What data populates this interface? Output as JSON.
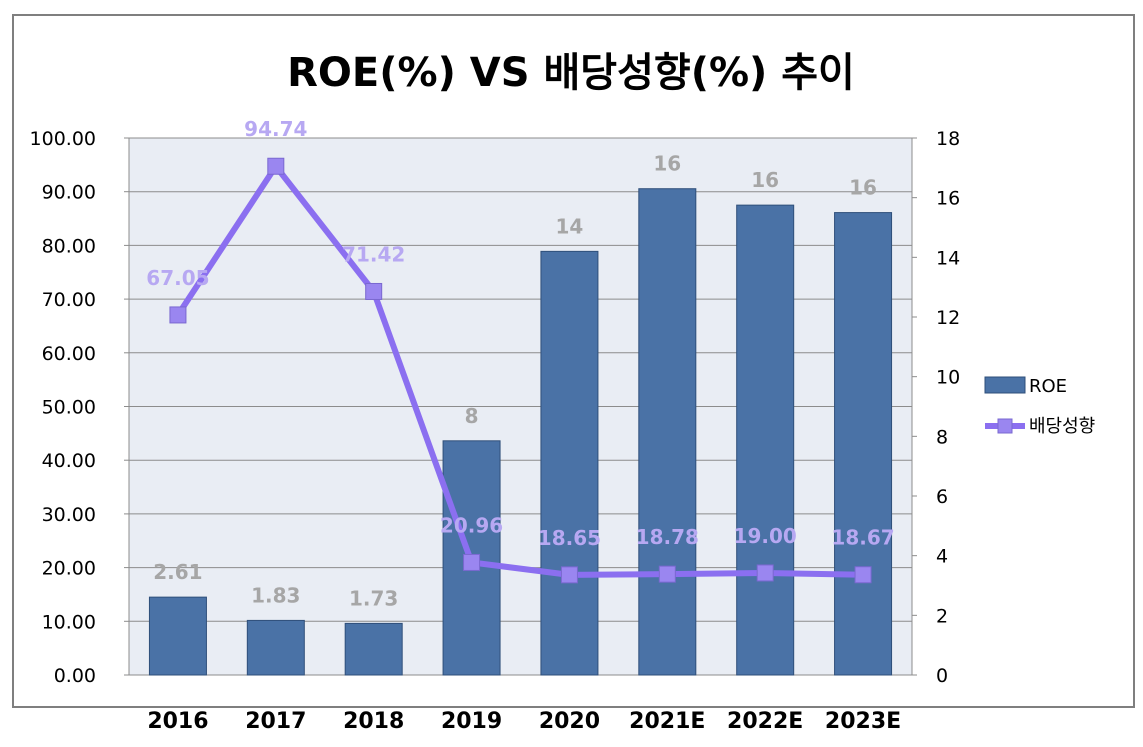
{
  "chart_data": {
    "type": "bar+line",
    "title": "ROE(%) VS 배당성향(%) 추이",
    "categories": [
      "2016",
      "2017",
      "2018",
      "2019",
      "2020",
      "2021E",
      "2022E",
      "2023E"
    ],
    "series": [
      {
        "name": "ROE",
        "type": "bar",
        "axis": "right",
        "values": [
          2.61,
          1.83,
          1.73,
          7.85,
          14.2,
          16.3,
          15.75,
          15.5
        ],
        "labels": [
          "2.61",
          "1.83",
          "1.73",
          "8",
          "14",
          "16",
          "16",
          "16"
        ]
      },
      {
        "name": "배당성향",
        "type": "line",
        "axis": "left",
        "values": [
          67.05,
          94.74,
          71.42,
          20.96,
          18.65,
          18.78,
          19.0,
          18.67
        ],
        "labels": [
          "67.05",
          "94.74",
          "71.42",
          "20.96",
          "18.65",
          "18.78",
          "19.00",
          "18.67"
        ]
      }
    ],
    "y_left": {
      "min": 0,
      "max": 100,
      "step": 10,
      "ticks": [
        "0.00",
        "10.00",
        "20.00",
        "30.00",
        "40.00",
        "50.00",
        "60.00",
        "70.00",
        "80.00",
        "90.00",
        "100.00"
      ]
    },
    "y_right": {
      "min": 0,
      "max": 18,
      "step": 2,
      "ticks": [
        "0",
        "2",
        "4",
        "6",
        "8",
        "10",
        "12",
        "14",
        "16",
        "18"
      ]
    },
    "grid": true,
    "legend_position": "right",
    "colors": {
      "bar": "#4a72a6",
      "bar_edge": "#2f4f7a",
      "line": "#8b6ff0",
      "marker": "#9a86f0",
      "bar_label": "#a6a6a6",
      "line_label": "#b7a8f2",
      "plot_bg": "#e9edf4"
    }
  }
}
